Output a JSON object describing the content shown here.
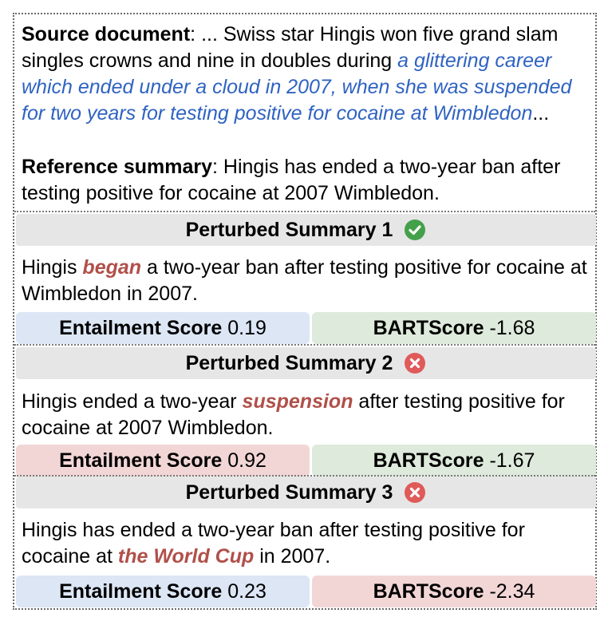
{
  "source": {
    "label": "Source document",
    "colon": ": ",
    "text_before": "... Swiss star Hingis won five grand slam singles crowns and nine in doubles during ",
    "highlight": "a glittering career which ended under a cloud in 2007, when she was suspended for two years for testing positive for cocaine at Wimbledon",
    "text_after": "..."
  },
  "reference": {
    "label": "Reference summary",
    "colon": ": ",
    "text": "Hingis has ended a two-year ban after testing positive for cocaine at 2007 Wimbledon."
  },
  "perturbed": [
    {
      "title": "Perturbed Summary 1",
      "status": "correct",
      "status_icon": "check-circle-icon",
      "status_color": "#44a04a",
      "text_before": "Hingis ",
      "highlight": "began",
      "text_after": " a two-year ban after testing positive for cocaine at Wimbledon in 2007.",
      "entailment_label": "Entailment Score",
      "entailment_value": "0.19",
      "bartscore_label": "BARTScore",
      "bartscore_value": "-1.68",
      "entailment_color": "#dce6f5",
      "bartscore_color": "#deeadb"
    },
    {
      "title": "Perturbed Summary 2",
      "status": "incorrect",
      "status_icon": "x-circle-icon",
      "status_color": "#e05a5a",
      "text_before": "Hingis ended a two-year ",
      "highlight": "suspension",
      "text_after": " after testing positive for cocaine at 2007 Wimbledon.",
      "entailment_label": "Entailment Score",
      "entailment_value": "0.92",
      "bartscore_label": "BARTScore",
      "bartscore_value": "-1.67",
      "entailment_color": "#f2d6d6",
      "bartscore_color": "#deeadb"
    },
    {
      "title": "Perturbed Summary 3",
      "status": "incorrect",
      "status_icon": "x-circle-icon",
      "status_color": "#e05a5a",
      "text_before": "Hingis has ended a two-year ban after testing positive for cocaine at ",
      "highlight": "the World Cup",
      "text_after": " in 2007.",
      "entailment_label": "Entailment Score",
      "entailment_value": "0.23",
      "bartscore_label": "BARTScore",
      "bartscore_value": "-2.34",
      "entailment_color": "#dce6f5",
      "bartscore_color": "#f2d6d6"
    }
  ]
}
